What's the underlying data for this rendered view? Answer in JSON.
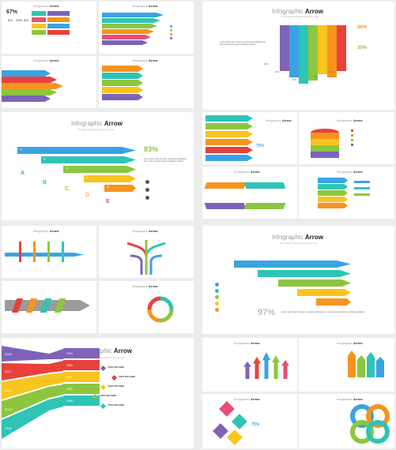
{
  "title_main": "Infographic",
  "title_accent": "Arrow",
  "subtitle": "The simple line goes here and here. Text",
  "body_text": "Lorem ipsum dolor sit amet, consectetur adipiscing elit, sed do eiusmod tempor incididunt ut labore",
  "colors": {
    "purple": "#7e63b8",
    "blue": "#3aa3e3",
    "teal": "#2ec4b6",
    "green": "#8cc63f",
    "yellow": "#f7c51e",
    "orange": "#f7941d",
    "red": "#e8413c",
    "pink": "#e94e77",
    "gray": "#9b9b9b"
  },
  "slide1": {
    "pct": "67%",
    "values": [
      "8%",
      "23%",
      "5%"
    ]
  },
  "slide3": {
    "pcts": [
      "36%",
      "35%"
    ],
    "steps": [
      "2015",
      "2016",
      "2017",
      "2018",
      "2019"
    ]
  },
  "slide6": {
    "numbers": [
      "01",
      "02",
      "03",
      "04",
      "05"
    ],
    "letters": [
      "A",
      "B",
      "C",
      "D",
      "E"
    ],
    "pct": "83%"
  },
  "slide7": {
    "pct": "75%"
  },
  "slide12": {
    "pct": "97%"
  },
  "slide13": {
    "years": [
      "2016",
      "2017",
      "2018",
      "2019",
      "2020"
    ],
    "percents": [
      "24%",
      "33%",
      "24%",
      "39%",
      "28%"
    ],
    "items": [
      "YOUR TEXT HERE",
      "YOUR TEXT HERE",
      "YOUR TEXT HERE",
      "YOUR TEXT HERE",
      "YOUR TEXT HERE"
    ]
  },
  "slide16": {
    "pct": "75%"
  }
}
